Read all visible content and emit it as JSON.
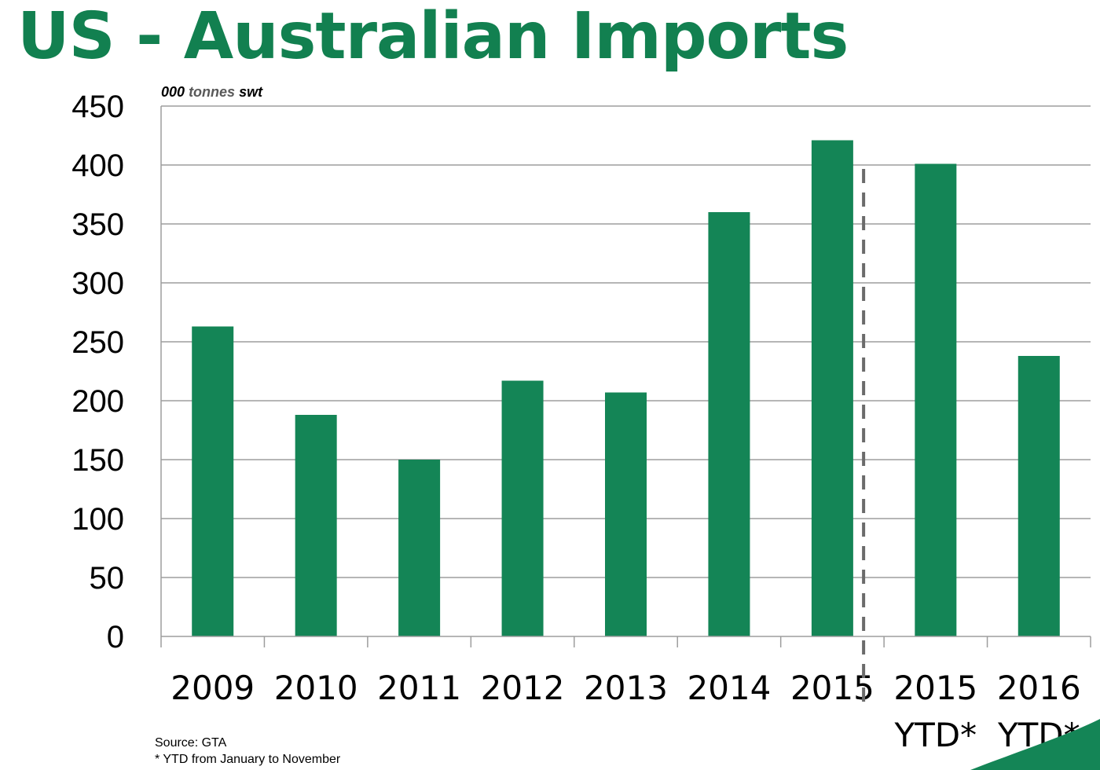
{
  "title": "US - Australian Imports",
  "colors": {
    "title": "#128050",
    "bar": "#148556",
    "grid": "#9d9d9d",
    "divider": "#6b6b6b",
    "text": "#000000",
    "unit_text": "#595959"
  },
  "source": "Source: GTA",
  "footnote": "* YTD from January to November",
  "chart_data": {
    "type": "bar",
    "unit_label": {
      "prefix": "000",
      "middle": "tonnes",
      "suffix": "swt"
    },
    "categories": [
      [
        "2009"
      ],
      [
        "2010"
      ],
      [
        "2011"
      ],
      [
        "2012"
      ],
      [
        "2013"
      ],
      [
        "2014"
      ],
      [
        "2015"
      ],
      [
        "2015",
        "YTD*"
      ],
      [
        "2016",
        "YTD*"
      ]
    ],
    "values": [
      263,
      188,
      150,
      217,
      207,
      360,
      421,
      401,
      238
    ],
    "ylim": [
      0,
      450
    ],
    "yticks": [
      0,
      50,
      100,
      150,
      200,
      250,
      300,
      350,
      400,
      450
    ],
    "grid": true,
    "divider_after_index": 6,
    "divider_style": "dashed"
  }
}
